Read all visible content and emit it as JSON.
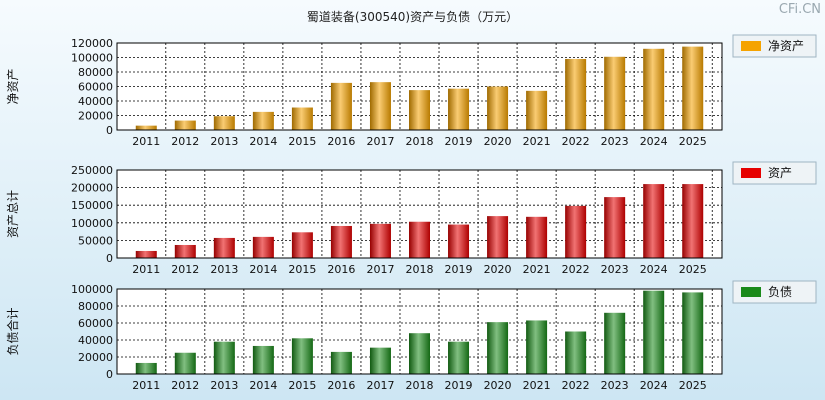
{
  "title": "蜀道装备(300540)资产与负债（万元）",
  "watermark": "CFi.CN",
  "chart_data": [
    {
      "type": "bar",
      "ylabel": "净资产",
      "legend": "净资产",
      "color": "#f5a300",
      "categories": [
        "2011",
        "2012",
        "2013",
        "2014",
        "2015",
        "2016",
        "2017",
        "2018",
        "2019",
        "2020",
        "2021",
        "2022",
        "2023",
        "2024",
        "2025"
      ],
      "values": [
        6000,
        13000,
        19000,
        25000,
        31000,
        65000,
        66000,
        55000,
        57000,
        60000,
        54000,
        98000,
        101000,
        112000,
        115000
      ],
      "ylim": [
        0,
        120000
      ],
      "yticks": [
        0,
        20000,
        40000,
        60000,
        80000,
        100000,
        120000
      ],
      "grid": true,
      "legend_position": "right"
    },
    {
      "type": "bar",
      "ylabel": "资产总计",
      "legend": "资产",
      "color": "#e60000",
      "categories": [
        "2011",
        "2012",
        "2013",
        "2014",
        "2015",
        "2016",
        "2017",
        "2018",
        "2019",
        "2020",
        "2021",
        "2022",
        "2023",
        "2024",
        "2025"
      ],
      "values": [
        20000,
        37000,
        57000,
        60000,
        73000,
        91000,
        97000,
        103000,
        95000,
        119000,
        117000,
        148000,
        173000,
        210000,
        210000
      ],
      "ylim": [
        0,
        250000
      ],
      "yticks": [
        0,
        50000,
        100000,
        150000,
        200000,
        250000
      ],
      "grid": true,
      "legend_position": "right"
    },
    {
      "type": "bar",
      "ylabel": "负债合计",
      "legend": "负债",
      "color": "#1a8a1a",
      "categories": [
        "2011",
        "2012",
        "2013",
        "2014",
        "2015",
        "2016",
        "2017",
        "2018",
        "2019",
        "2020",
        "2021",
        "2022",
        "2023",
        "2024",
        "2025"
      ],
      "values": [
        13000,
        25000,
        38000,
        33000,
        42000,
        26000,
        31000,
        48000,
        38000,
        61000,
        63000,
        50000,
        72000,
        98000,
        96000
      ],
      "ylim": [
        0,
        100000
      ],
      "yticks": [
        0,
        20000,
        40000,
        60000,
        80000,
        100000
      ],
      "grid": true,
      "legend_position": "right"
    }
  ]
}
